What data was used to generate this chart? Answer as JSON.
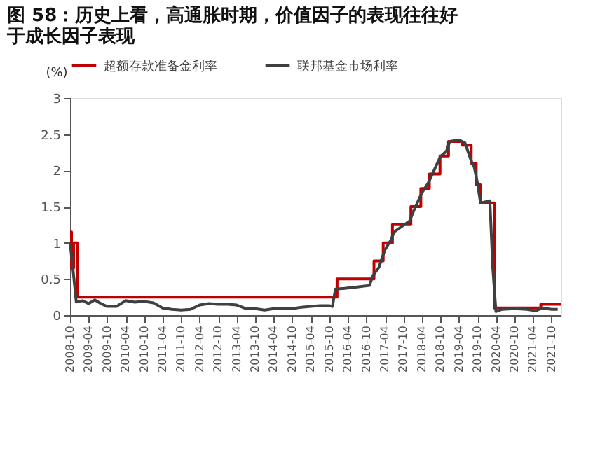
{
  "chart_data": {
    "type": "step",
    "title": "图 58：历史上看，高通胀时期，价值因子的表现往往好于成长因子表现",
    "ylabel": "(%)",
    "xlim": [
      "2008-10-01",
      "2021-12-31"
    ],
    "xticks": [
      "2008-10",
      "2009-04",
      "2009-10",
      "2010-04",
      "2010-10",
      "2011-04",
      "2011-10",
      "2012-04",
      "2012-10",
      "2013-04",
      "2013-10",
      "2014-04",
      "2014-10",
      "2015-04",
      "2015-10",
      "2016-04",
      "2016-10",
      "2017-04",
      "2017-10",
      "2018-04",
      "2018-10",
      "2019-04",
      "2019-10",
      "2020-04",
      "2020-10",
      "2021-04",
      "2021-10"
    ],
    "ylim": [
      0,
      3
    ],
    "yticks": [
      0,
      0.5,
      1,
      1.5,
      2,
      2.5,
      3
    ],
    "grid": false,
    "legend": "top",
    "marker": "none",
    "line_style": "solid",
    "series": [
      {
        "name": "超额存款准备金利率",
        "color": "#c00000",
        "x": [
          "2008-10-01",
          "2008-10-15",
          "2008-11-05",
          "2008-12-16",
          "2015-12-17",
          "2016-12-15",
          "2017-03-16",
          "2017-06-15",
          "2017-12-14",
          "2018-03-22",
          "2018-06-14",
          "2018-09-27",
          "2018-12-20",
          "2019-05-02",
          "2019-08-01",
          "2019-09-19",
          "2019-10-31",
          "2020-03-16",
          "2021-06-17",
          "2021-12-31"
        ],
        "values": [
          1.15,
          0.65,
          1.0,
          0.25,
          0.5,
          0.75,
          1.0,
          1.25,
          1.5,
          1.75,
          1.95,
          2.2,
          2.4,
          2.35,
          2.1,
          1.8,
          1.55,
          0.1,
          0.15,
          0.15
        ]
      },
      {
        "name": "联邦基金市场利率",
        "type": "line",
        "color": "#404040",
        "x": [
          "2008-10",
          "2008-11",
          "2008-12",
          "2009-02",
          "2009-04",
          "2009-06",
          "2009-08",
          "2009-10",
          "2010-01",
          "2010-04",
          "2010-07",
          "2010-10",
          "2011-01",
          "2011-04",
          "2011-07",
          "2011-10",
          "2012-01",
          "2012-04",
          "2012-07",
          "2012-10",
          "2013-01",
          "2013-04",
          "2013-07",
          "2013-10",
          "2014-01",
          "2014-04",
          "2014-07",
          "2014-10",
          "2015-01",
          "2015-04",
          "2015-07",
          "2015-10",
          "2015-11",
          "2015-12",
          "2016-03",
          "2016-07",
          "2016-11",
          "2016-12",
          "2017-02",
          "2017-04",
          "2017-06",
          "2017-07",
          "2017-12",
          "2018-01",
          "2018-04",
          "2018-06",
          "2018-07",
          "2018-10",
          "2018-12",
          "2019-01",
          "2019-04",
          "2019-06",
          "2019-08",
          "2019-09",
          "2019-10",
          "2019-11",
          "2020-02",
          "2020-03",
          "2020-04",
          "2020-06",
          "2020-10",
          "2021-02",
          "2021-05",
          "2021-07",
          "2021-10",
          "2021-12"
        ],
        "values": [
          1.0,
          0.6,
          0.18,
          0.2,
          0.16,
          0.21,
          0.16,
          0.12,
          0.12,
          0.2,
          0.18,
          0.19,
          0.17,
          0.1,
          0.08,
          0.07,
          0.08,
          0.14,
          0.16,
          0.15,
          0.15,
          0.14,
          0.09,
          0.09,
          0.07,
          0.09,
          0.09,
          0.09,
          0.11,
          0.12,
          0.13,
          0.13,
          0.12,
          0.36,
          0.37,
          0.39,
          0.41,
          0.54,
          0.66,
          0.9,
          1.04,
          1.15,
          1.3,
          1.41,
          1.69,
          1.82,
          1.91,
          2.19,
          2.27,
          2.4,
          2.42,
          2.38,
          2.13,
          2.04,
          1.83,
          1.55,
          1.58,
          0.65,
          0.05,
          0.08,
          0.09,
          0.08,
          0.06,
          0.1,
          0.08,
          0.08
        ]
      }
    ]
  }
}
